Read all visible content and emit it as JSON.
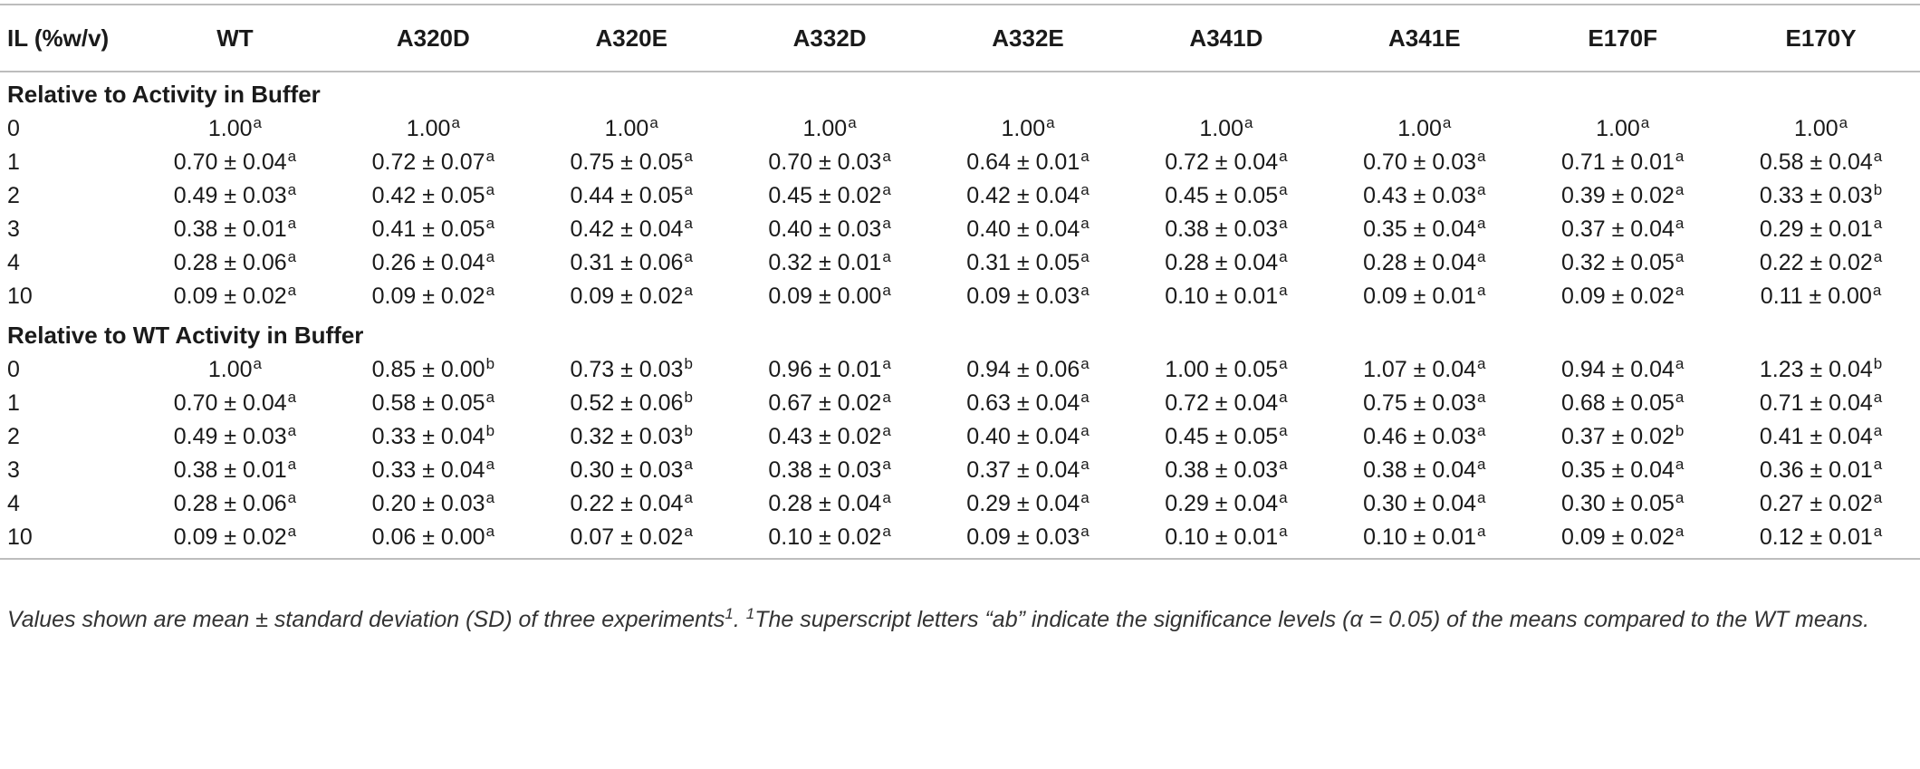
{
  "table": {
    "header_il": "IL (%w/v)",
    "columns": [
      "WT",
      "A320D",
      "A320E",
      "A332D",
      "A332E",
      "A341D",
      "A341E",
      "E170F",
      "E170Y"
    ],
    "sections": [
      {
        "title": "Relative to Activity in Buffer",
        "rows": [
          {
            "il": "0",
            "cells": [
              [
                "1.00",
                "a"
              ],
              [
                "1.00",
                "a"
              ],
              [
                "1.00",
                "a"
              ],
              [
                "1.00",
                "a"
              ],
              [
                "1.00",
                "a"
              ],
              [
                "1.00",
                "a"
              ],
              [
                "1.00",
                "a"
              ],
              [
                "1.00",
                "a"
              ],
              [
                "1.00",
                "a"
              ]
            ]
          },
          {
            "il": "1",
            "cells": [
              [
                "0.70 ± 0.04",
                "a"
              ],
              [
                "0.72 ± 0.07",
                "a"
              ],
              [
                "0.75 ± 0.05",
                "a"
              ],
              [
                "0.70 ± 0.03",
                "a"
              ],
              [
                "0.64 ± 0.01",
                "a"
              ],
              [
                "0.72 ± 0.04",
                "a"
              ],
              [
                "0.70 ± 0.03",
                "a"
              ],
              [
                "0.71 ± 0.01",
                "a"
              ],
              [
                "0.58 ± 0.04",
                "a"
              ]
            ]
          },
          {
            "il": "2",
            "cells": [
              [
                "0.49 ± 0.03",
                "a"
              ],
              [
                "0.42 ± 0.05",
                "a"
              ],
              [
                "0.44 ± 0.05",
                "a"
              ],
              [
                "0.45 ± 0.02",
                "a"
              ],
              [
                "0.42 ± 0.04",
                "a"
              ],
              [
                "0.45 ± 0.05",
                "a"
              ],
              [
                "0.43 ± 0.03",
                "a"
              ],
              [
                "0.39 ± 0.02",
                "a"
              ],
              [
                "0.33 ± 0.03",
                "b"
              ]
            ]
          },
          {
            "il": "3",
            "cells": [
              [
                "0.38 ± 0.01",
                "a"
              ],
              [
                "0.41 ± 0.05",
                "a"
              ],
              [
                "0.42 ± 0.04",
                "a"
              ],
              [
                "0.40 ± 0.03",
                "a"
              ],
              [
                "0.40 ± 0.04",
                "a"
              ],
              [
                "0.38 ± 0.03",
                "a"
              ],
              [
                "0.35 ± 0.04",
                "a"
              ],
              [
                "0.37 ± 0.04",
                "a"
              ],
              [
                "0.29 ± 0.01",
                "a"
              ]
            ]
          },
          {
            "il": "4",
            "cells": [
              [
                "0.28 ± 0.06",
                "a"
              ],
              [
                "0.26 ± 0.04",
                "a"
              ],
              [
                "0.31 ± 0.06",
                "a"
              ],
              [
                "0.32 ± 0.01",
                "a"
              ],
              [
                "0.31 ± 0.05",
                "a"
              ],
              [
                "0.28 ± 0.04",
                "a"
              ],
              [
                "0.28 ± 0.04",
                "a"
              ],
              [
                "0.32 ± 0.05",
                "a"
              ],
              [
                "0.22 ± 0.02",
                "a"
              ]
            ]
          },
          {
            "il": "10",
            "cells": [
              [
                "0.09 ± 0.02",
                "a"
              ],
              [
                "0.09 ± 0.02",
                "a"
              ],
              [
                "0.09 ± 0.02",
                "a"
              ],
              [
                "0.09 ± 0.00",
                "a"
              ],
              [
                "0.09 ± 0.03",
                "a"
              ],
              [
                "0.10 ± 0.01",
                "a"
              ],
              [
                "0.09 ± 0.01",
                "a"
              ],
              [
                "0.09 ± 0.02",
                "a"
              ],
              [
                "0.11 ± 0.00",
                "a"
              ]
            ]
          }
        ]
      },
      {
        "title": "Relative to WT Activity in Buffer",
        "rows": [
          {
            "il": "0",
            "cells": [
              [
                "1.00",
                "a"
              ],
              [
                "0.85 ± 0.00",
                "b"
              ],
              [
                "0.73 ± 0.03",
                "b"
              ],
              [
                "0.96 ± 0.01",
                "a"
              ],
              [
                "0.94 ± 0.06",
                "a"
              ],
              [
                "1.00 ± 0.05",
                "a"
              ],
              [
                "1.07 ± 0.04",
                "a"
              ],
              [
                "0.94 ± 0.04",
                "a"
              ],
              [
                "1.23 ± 0.04",
                "b"
              ]
            ]
          },
          {
            "il": "1",
            "cells": [
              [
                "0.70 ± 0.04",
                "a"
              ],
              [
                "0.58 ± 0.05",
                "a"
              ],
              [
                "0.52 ± 0.06",
                "b"
              ],
              [
                "0.67 ± 0.02",
                "a"
              ],
              [
                "0.63 ± 0.04",
                "a"
              ],
              [
                "0.72 ± 0.04",
                "a"
              ],
              [
                "0.75 ± 0.03",
                "a"
              ],
              [
                "0.68 ± 0.05",
                "a"
              ],
              [
                "0.71 ± 0.04",
                "a"
              ]
            ]
          },
          {
            "il": "2",
            "cells": [
              [
                "0.49 ± 0.03",
                "a"
              ],
              [
                "0.33 ± 0.04",
                "b"
              ],
              [
                "0.32 ± 0.03",
                "b"
              ],
              [
                "0.43 ± 0.02",
                "a"
              ],
              [
                "0.40 ± 0.04",
                "a"
              ],
              [
                "0.45 ± 0.05",
                "a"
              ],
              [
                "0.46 ± 0.03",
                "a"
              ],
              [
                "0.37 ± 0.02",
                "b"
              ],
              [
                "0.41 ± 0.04",
                "a"
              ]
            ]
          },
          {
            "il": "3",
            "cells": [
              [
                "0.38 ± 0.01",
                "a"
              ],
              [
                "0.33 ± 0.04",
                "a"
              ],
              [
                "0.30 ± 0.03",
                "a"
              ],
              [
                "0.38 ± 0.03",
                "a"
              ],
              [
                "0.37 ± 0.04",
                "a"
              ],
              [
                "0.38 ± 0.03",
                "a"
              ],
              [
                "0.38 ± 0.04",
                "a"
              ],
              [
                "0.35 ± 0.04",
                "a"
              ],
              [
                "0.36 ± 0.01",
                "a"
              ]
            ]
          },
          {
            "il": "4",
            "cells": [
              [
                "0.28 ± 0.06",
                "a"
              ],
              [
                "0.20 ± 0.03",
                "a"
              ],
              [
                "0.22 ± 0.04",
                "a"
              ],
              [
                "0.28 ± 0.04",
                "a"
              ],
              [
                "0.29 ± 0.04",
                "a"
              ],
              [
                "0.29 ± 0.04",
                "a"
              ],
              [
                "0.30 ± 0.04",
                "a"
              ],
              [
                "0.30 ± 0.05",
                "a"
              ],
              [
                "0.27 ± 0.02",
                "a"
              ]
            ]
          },
          {
            "il": "10",
            "cells": [
              [
                "0.09 ± 0.02",
                "a"
              ],
              [
                "0.06 ± 0.00",
                "a"
              ],
              [
                "0.07 ± 0.02",
                "a"
              ],
              [
                "0.10 ± 0.02",
                "a"
              ],
              [
                "0.09 ± 0.03",
                "a"
              ],
              [
                "0.10 ± 0.01",
                "a"
              ],
              [
                "0.10 ± 0.01",
                "a"
              ],
              [
                "0.09 ± 0.02",
                "a"
              ],
              [
                "0.12 ± 0.01",
                "a"
              ]
            ]
          }
        ]
      }
    ]
  },
  "footnote": {
    "part1": "Values shown are mean ± standard deviation (SD) of three experiments",
    "sup1": "1",
    "part2": ". ",
    "sup2": "1",
    "part3": "The superscript letters “ab” indicate the significance levels (α = 0.05) of the means compared to the WT means."
  }
}
